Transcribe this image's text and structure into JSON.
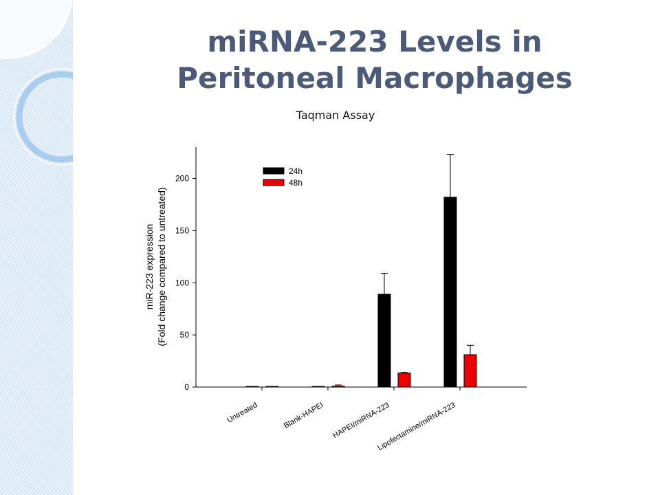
{
  "slide": {
    "title_line1": "miRNA-223 Levels in",
    "title_line2": "Peritoneal Macrophages",
    "subtitle": "Taqman Assay"
  },
  "chart_data": {
    "type": "bar",
    "categories": [
      "Untreated",
      "Blank-HAPEI",
      "HAPEI/miRNA-223",
      "Lipofectamine/miRNA-223"
    ],
    "series": [
      {
        "name": "24h",
        "color": "#000000",
        "values": [
          0.5,
          0.5,
          89,
          182
        ],
        "errors": [
          0,
          0,
          20,
          41
        ]
      },
      {
        "name": "48h",
        "color": "#ee0000",
        "values": [
          0.5,
          1,
          13.5,
          31
        ],
        "errors": [
          0,
          1,
          0.5,
          9
        ]
      }
    ],
    "ylabel_line1": "miR-223 expression",
    "ylabel_line2": "(Fold change compared to untreated)",
    "xlabel": "",
    "ylim": [
      0,
      230
    ],
    "yticks": [
      0,
      50,
      100,
      150,
      200
    ],
    "legend_position": "top-left",
    "grid": false
  }
}
